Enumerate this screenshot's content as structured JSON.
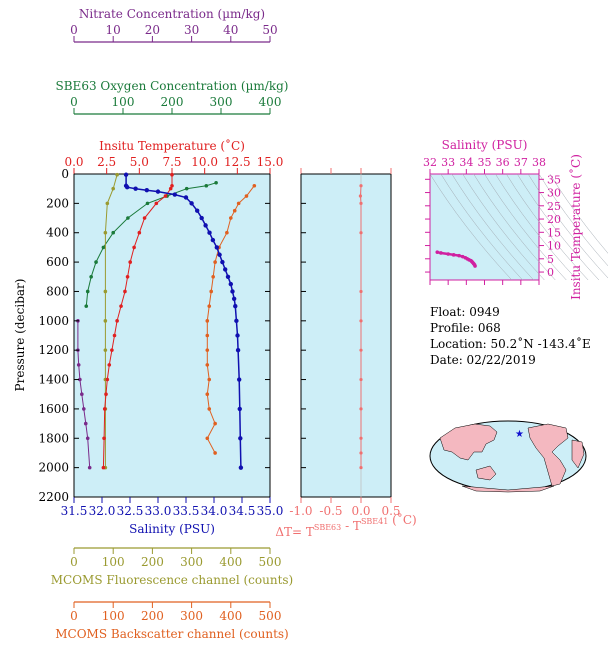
{
  "colors": {
    "nitrate": "#7a2a8a",
    "oxygen": "#1a7a3a",
    "temperature": "#e02020",
    "salinity": "#1010b0",
    "fluorescence": "#9a9a30",
    "backscatter": "#e06020",
    "delta": "#f07070",
    "ts": "#d020a0",
    "panel_bg": "#cdeef7"
  },
  "chart_data": [
    {
      "type": "line",
      "name_key": "main-profile",
      "ylabel": "Pressure (decibar)",
      "y_ticks": [
        0,
        200,
        400,
        600,
        800,
        1000,
        1200,
        1400,
        1600,
        1800,
        2000,
        2200
      ],
      "ylim": [
        0,
        2200
      ],
      "axes": {
        "nitrate": {
          "label": "Nitrate Concentration (µm/kg)",
          "ticks": [
            0,
            10,
            20,
            30,
            40,
            50
          ],
          "range": [
            0,
            50
          ]
        },
        "oxygen": {
          "label": "SBE63 Oxygen Concentration (µm/kg)",
          "ticks": [
            0,
            100,
            200,
            300,
            400
          ],
          "range": [
            0,
            400
          ]
        },
        "temperature": {
          "label": "Insitu Temperature (˚C)",
          "ticks": [
            "0.0",
            "2.5",
            "5.0",
            "7.5",
            "10.0",
            "12.5",
            "15.0"
          ],
          "range": [
            0,
            15
          ]
        },
        "salinity": {
          "label": "Salinity (PSU)",
          "ticks": [
            "31.5",
            "32.0",
            "32.5",
            "33.0",
            "33.5",
            "34.0",
            "34.5",
            "35.0"
          ],
          "range": [
            31.5,
            35
          ]
        },
        "fluorescence": {
          "label": "MCOMS Fluorescence channel (counts)",
          "ticks": [
            0,
            100,
            200,
            300,
            400,
            500
          ],
          "range": [
            0,
            500
          ]
        },
        "backscatter": {
          "label": "MCOMS Backscatter channel (counts)",
          "ticks": [
            0,
            100,
            200,
            300,
            400,
            500
          ],
          "range": [
            0,
            500
          ]
        }
      },
      "series": [
        {
          "key": "salinity",
          "x": [
            32.43,
            32.43,
            32.45,
            32.6,
            32.8,
            33.0,
            33.3,
            33.5,
            33.6,
            33.7,
            33.78,
            33.85,
            33.92,
            33.98,
            34.05,
            34.1,
            34.15,
            34.2,
            34.25,
            34.3,
            34.33,
            34.36,
            34.38,
            34.4,
            34.42,
            34.43,
            34.45,
            34.46,
            34.47,
            34.48
          ],
          "y": [
            5,
            80,
            90,
            100,
            110,
            120,
            140,
            160,
            200,
            250,
            300,
            350,
            400,
            450,
            500,
            550,
            600,
            650,
            700,
            750,
            800,
            850,
            900,
            1000,
            1100,
            1200,
            1400,
            1600,
            1800,
            2000
          ]
        },
        {
          "key": "temperature",
          "x": [
            7.5,
            7.5,
            7.4,
            7.0,
            6.3,
            5.4,
            5.0,
            4.6,
            4.3,
            4.1,
            3.9,
            3.6,
            3.3,
            3.1,
            2.9,
            2.7,
            2.55,
            2.45,
            2.35,
            2.3,
            2.25
          ],
          "y": [
            5,
            80,
            100,
            150,
            200,
            300,
            400,
            500,
            600,
            700,
            800,
            900,
            1000,
            1100,
            1200,
            1300,
            1400,
            1500,
            1600,
            1800,
            2000
          ]
        },
        {
          "key": "oxygen",
          "x": [
            290,
            270,
            230,
            190,
            150,
            110,
            80,
            60,
            45,
            35,
            28,
            25
          ],
          "y": [
            60,
            80,
            100,
            150,
            200,
            300,
            400,
            500,
            600,
            700,
            800,
            900
          ]
        },
        {
          "key": "nitrate",
          "x": [
            1,
            1,
            1.2,
            1.5,
            2,
            2.5,
            3,
            3.5,
            4
          ],
          "y": [
            1000,
            1200,
            1300,
            1400,
            1500,
            1600,
            1700,
            1800,
            2000
          ]
        },
        {
          "key": "fluorescence",
          "x": [
            110,
            100,
            85,
            80,
            80,
            80,
            80,
            80,
            80,
            80
          ],
          "y": [
            5,
            100,
            200,
            400,
            800,
            1000,
            1200,
            1400,
            1600,
            2000
          ]
        },
        {
          "key": "backscatter",
          "x": [
            460,
            440,
            420,
            410,
            400,
            390,
            370,
            360,
            355,
            350,
            345,
            340,
            340,
            340,
            340,
            345,
            340,
            345,
            360,
            340,
            360
          ],
          "y": [
            80,
            150,
            200,
            250,
            300,
            400,
            500,
            600,
            700,
            800,
            900,
            1000,
            1100,
            1200,
            1300,
            1400,
            1500,
            1600,
            1700,
            1800,
            1900
          ]
        }
      ]
    },
    {
      "type": "line",
      "name_key": "delta-t",
      "xlabel_prefix": "ΔT= T",
      "xlabel_sup1": "SBE63",
      "xlabel_mid": " - T",
      "xlabel_sup2": "SBE41",
      "xlabel_suffix": " (˚C)",
      "x_ticks": [
        "-1.0",
        "-0.5",
        "0.0",
        "0.5"
      ],
      "xlim": [
        -1.0,
        0.5
      ],
      "ylim": [
        0,
        2200
      ],
      "series": [
        {
          "x": [
            0.0,
            -0.01,
            0.0,
            0.0,
            0.0,
            0.0,
            0.0,
            0.0,
            0.0,
            0.0,
            0.0,
            0.0
          ],
          "y": [
            80,
            150,
            200,
            400,
            800,
            1000,
            1200,
            1400,
            1600,
            1800,
            1900,
            2000
          ]
        }
      ]
    },
    {
      "type": "scatter",
      "name_key": "ts-diagram",
      "title": "Salinity (PSU)",
      "ylabel": "Insitu Temperature (˚C)",
      "x_ticks": [
        32,
        33,
        34,
        35,
        36,
        37,
        38
      ],
      "xlim": [
        32,
        38
      ],
      "y_ticks": [
        0,
        5,
        10,
        15,
        20,
        25,
        30,
        35
      ],
      "ylim": [
        -3,
        37
      ],
      "series": [
        {
          "x": [
            32.4,
            32.6,
            33.0,
            33.3,
            33.6,
            33.8,
            33.95,
            34.05,
            34.15,
            34.25,
            34.3,
            34.35,
            34.4,
            34.45,
            34.48
          ],
          "y": [
            7.5,
            7.2,
            6.8,
            6.5,
            6.2,
            5.8,
            5.4,
            5.0,
            4.6,
            4.3,
            4.0,
            3.6,
            3.2,
            2.8,
            2.3
          ]
        }
      ]
    }
  ],
  "info": {
    "float": "Float:  0949",
    "profile": "Profile:  068",
    "location": "Location:  50.2˚N  -143.4˚E",
    "date": "Date:  02/22/2019"
  }
}
